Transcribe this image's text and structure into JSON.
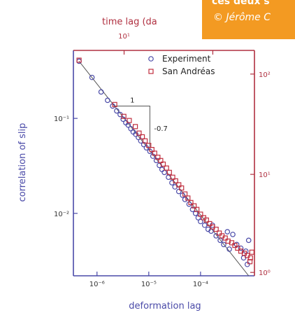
{
  "caption": {
    "line1": "ces deux s",
    "line2": "© Jérôme C",
    "background": "#f39a22"
  },
  "colors": {
    "bottom_left_axes": "#4a4aa8",
    "top_right_axes": "#b03040",
    "experiment_marker": "#4a4aa8",
    "san_andreas_marker": "#c03040"
  },
  "chart_data": {
    "type": "scatter",
    "xlabel": "deformation lag",
    "ylabel": "correlation of slip",
    "top_label": "time lag (da",
    "xscale": "log",
    "yscale": "log",
    "xlim": [
      3.5e-07,
      0.0011
    ],
    "ylim": [
      0.0022,
      0.52
    ],
    "x_ticks": [
      {
        "value": 1e-06,
        "label": "10⁻⁶"
      },
      {
        "value": 1e-05,
        "label": "10⁻⁵"
      },
      {
        "value": 0.0001,
        "label": "10⁻⁴"
      }
    ],
    "y_ticks": [
      {
        "value": 0.1,
        "label": "10⁻¹"
      },
      {
        "value": 0.01,
        "label": "10⁻²"
      }
    ],
    "top_ticks": [
      {
        "label": "10¹",
        "frac": 0.28
      },
      {
        "label": "10¹",
        "frac": 0.77
      }
    ],
    "right_ticks": [
      {
        "label": "10²",
        "frac": 0.105
      },
      {
        "label": "10¹",
        "frac": 0.55
      },
      {
        "label": "10⁰",
        "frac": 0.985
      }
    ],
    "legend": {
      "position": "top-right",
      "entries": [
        "Experiment",
        "San Andréas"
      ]
    },
    "slope_triangle": {
      "run_label": "1",
      "rise_label": "-0.7"
    },
    "series": [
      {
        "name": "Experiment",
        "marker": "circle",
        "points": [
          [
            4.5e-07,
            0.4
          ],
          [
            8e-07,
            0.27
          ],
          [
            1.2e-06,
            0.19
          ],
          [
            1.6e-06,
            0.155
          ],
          [
            2e-06,
            0.135
          ],
          [
            2.4e-06,
            0.12
          ],
          [
            2.8e-06,
            0.11
          ],
          [
            3.2e-06,
            0.098
          ],
          [
            3.6e-06,
            0.09
          ],
          [
            4e-06,
            0.085
          ],
          [
            4.5e-06,
            0.078
          ],
          [
            5e-06,
            0.072
          ],
          [
            5.6e-06,
            0.068
          ],
          [
            6.3e-06,
            0.063
          ],
          [
            7e-06,
            0.058
          ],
          [
            8e-06,
            0.053
          ],
          [
            9e-06,
            0.049
          ],
          [
            1.05e-05,
            0.045
          ],
          [
            1.2e-05,
            0.04
          ],
          [
            1.4e-05,
            0.036
          ],
          [
            1.6e-05,
            0.032
          ],
          [
            1.8e-05,
            0.029
          ],
          [
            2e-05,
            0.027
          ],
          [
            2.4e-05,
            0.024
          ],
          [
            2.8e-05,
            0.021
          ],
          [
            3.2e-05,
            0.019
          ],
          [
            3.8e-05,
            0.017
          ],
          [
            4.5e-05,
            0.0155
          ],
          [
            5e-05,
            0.014
          ],
          [
            6e-05,
            0.0125
          ],
          [
            7e-05,
            0.011
          ],
          [
            8e-05,
            0.01
          ],
          [
            9e-05,
            0.009
          ],
          [
            0.0001,
            0.0082
          ],
          [
            0.00012,
            0.0075
          ],
          [
            0.00014,
            0.0068
          ],
          [
            0.00016,
            0.0065
          ],
          [
            0.00017,
            0.0075
          ],
          [
            0.0002,
            0.0058
          ],
          [
            0.00024,
            0.0052
          ],
          [
            0.00028,
            0.0047
          ],
          [
            0.00033,
            0.0064
          ],
          [
            0.00036,
            0.0042
          ],
          [
            0.00042,
            0.006
          ],
          [
            0.0005,
            0.0047
          ],
          [
            0.0006,
            0.0043
          ],
          [
            0.00068,
            0.0034
          ],
          [
            0.00075,
            0.004
          ],
          [
            0.0008,
            0.0029
          ],
          [
            0.00085,
            0.0052
          ]
        ]
      },
      {
        "name": "San Andréas",
        "marker": "square",
        "points": [
          [
            4.5e-07,
            0.41
          ],
          [
            2.2e-06,
            0.14
          ],
          [
            3.3e-06,
            0.105
          ],
          [
            4.2e-06,
            0.095
          ],
          [
            5.5e-06,
            0.082
          ],
          [
            6.5e-06,
            0.07
          ],
          [
            7.5e-06,
            0.064
          ],
          [
            8.5e-06,
            0.058
          ],
          [
            1e-05,
            0.052
          ],
          [
            1.15e-05,
            0.047
          ],
          [
            1.3e-05,
            0.043
          ],
          [
            1.5e-05,
            0.039
          ],
          [
            1.7e-05,
            0.036
          ],
          [
            1.9e-05,
            0.033
          ],
          [
            2.2e-05,
            0.03
          ],
          [
            2.5e-05,
            0.027
          ],
          [
            2.9e-05,
            0.024
          ],
          [
            3.3e-05,
            0.022
          ],
          [
            3.8e-05,
            0.02
          ],
          [
            4.3e-05,
            0.0185
          ],
          [
            5e-05,
            0.016
          ],
          [
            5.7e-05,
            0.0145
          ],
          [
            6.5e-05,
            0.013
          ],
          [
            7.5e-05,
            0.012
          ],
          [
            8.5e-05,
            0.011
          ],
          [
            0.0001,
            0.0098
          ],
          [
            0.000115,
            0.009
          ],
          [
            0.00013,
            0.0085
          ],
          [
            0.00015,
            0.0078
          ],
          [
            0.00017,
            0.0072
          ],
          [
            0.0002,
            0.0068
          ],
          [
            0.00023,
            0.0062
          ],
          [
            0.00026,
            0.0058
          ],
          [
            0.0003,
            0.0055
          ],
          [
            0.00034,
            0.0051
          ],
          [
            0.0004,
            0.0049
          ],
          [
            0.00046,
            0.0046
          ],
          [
            0.00052,
            0.0043
          ],
          [
            0.0006,
            0.004
          ],
          [
            0.0007,
            0.0038
          ],
          [
            0.0008,
            0.0036
          ],
          [
            0.00092,
            0.0034
          ],
          [
            0.00098,
            0.0039
          ],
          [
            0.0009,
            0.0031
          ]
        ]
      }
    ]
  }
}
